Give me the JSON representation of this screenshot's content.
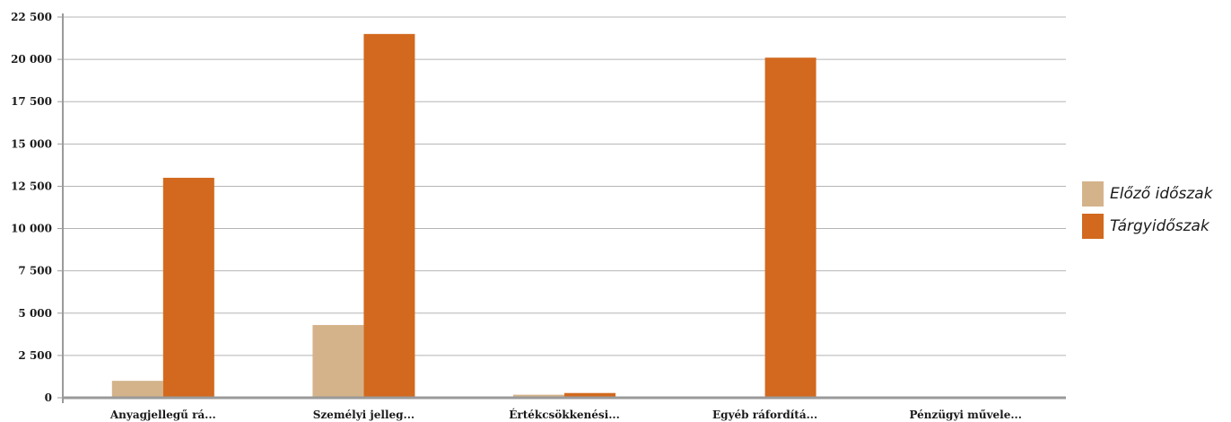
{
  "chart_data": {
    "type": "bar",
    "categories": [
      "Anyagjellegű rá...",
      "Személyi jelleg...",
      "Értékcsökkenési...",
      "Egyéb ráfordítá...",
      "Pénzügyi művele..."
    ],
    "series": [
      {
        "name": "Előző időszak",
        "color": "#d4b38a",
        "values": [
          1000,
          4300,
          180,
          0,
          0
        ]
      },
      {
        "name": "Tárgyidőszak",
        "color": "#d2691e",
        "values": [
          13000,
          21500,
          280,
          20100,
          0
        ]
      }
    ],
    "ylim": [
      0,
      22500
    ],
    "yticks": [
      0,
      2500,
      5000,
      7500,
      10000,
      12500,
      15000,
      17500,
      20000,
      22500
    ],
    "ytick_labels": [
      "0",
      "2 500",
      "5 000",
      "7 500",
      "10 000",
      "12 500",
      "15 000",
      "17 500",
      "20 000",
      "22 500"
    ],
    "grid": true,
    "legend_position": "right"
  }
}
